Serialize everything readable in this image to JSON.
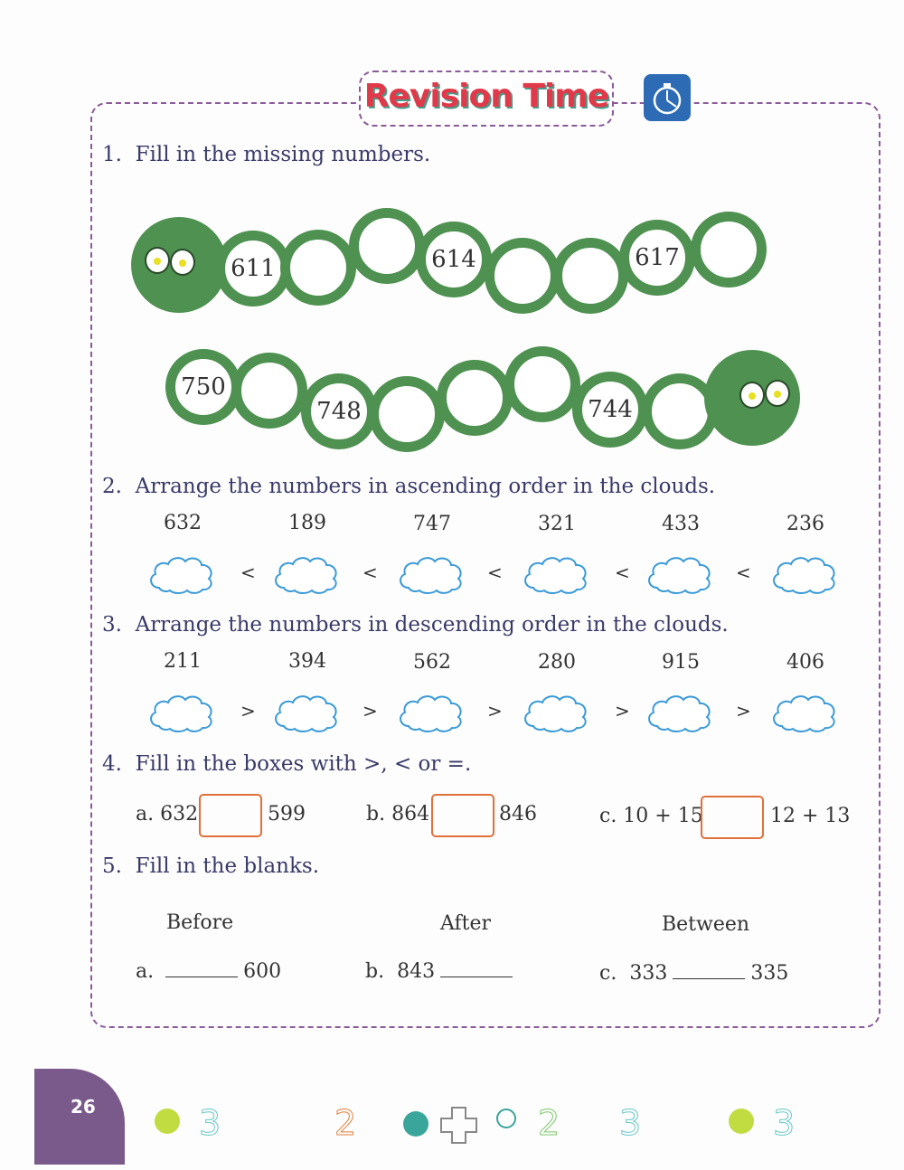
{
  "header": {
    "title": "Revision Time",
    "icon": "stopwatch-icon"
  },
  "q1": {
    "label": "1.",
    "text": "Fill in the missing numbers.",
    "row1": [
      "611",
      "",
      "",
      "614",
      "",
      "",
      "617",
      ""
    ],
    "row2": [
      "750",
      "",
      "748",
      "",
      "",
      "",
      "744",
      ""
    ]
  },
  "q2": {
    "label": "2.",
    "text": "Arrange the numbers in ascending order in the clouds.",
    "numbers": [
      "632",
      "189",
      "747",
      "321",
      "433",
      "236"
    ],
    "sign": "<"
  },
  "q3": {
    "label": "3.",
    "text": "Arrange the numbers in descending order in the clouds.",
    "numbers": [
      "211",
      "394",
      "562",
      "280",
      "915",
      "406"
    ],
    "sign": ">"
  },
  "q4": {
    "label": "4.",
    "text": "Fill in the boxes with >, < or =.",
    "items": [
      {
        "prefix": "a. 632",
        "suffix": "599"
      },
      {
        "prefix": "b. 864",
        "suffix": "846"
      },
      {
        "prefix": "c. 10 + 15",
        "suffix": "12 + 13"
      }
    ]
  },
  "q5": {
    "label": "5.",
    "text": "Fill in the blanks.",
    "headers": [
      "Before",
      "After",
      "Between"
    ],
    "items": [
      {
        "letter": "a.",
        "left": "",
        "right": "600"
      },
      {
        "letter": "b.",
        "left": "843",
        "right": ""
      },
      {
        "letter": "c.",
        "left": "333",
        "right": "335"
      }
    ]
  },
  "footer": {
    "page_number": "26"
  },
  "colors": {
    "caterpillar": "#4e9150",
    "title": "#e03a4a",
    "frame": "#8a5a9a",
    "cloud": "#3a9ad8",
    "box": "#e0703a",
    "badge": "#7a5a8a"
  }
}
